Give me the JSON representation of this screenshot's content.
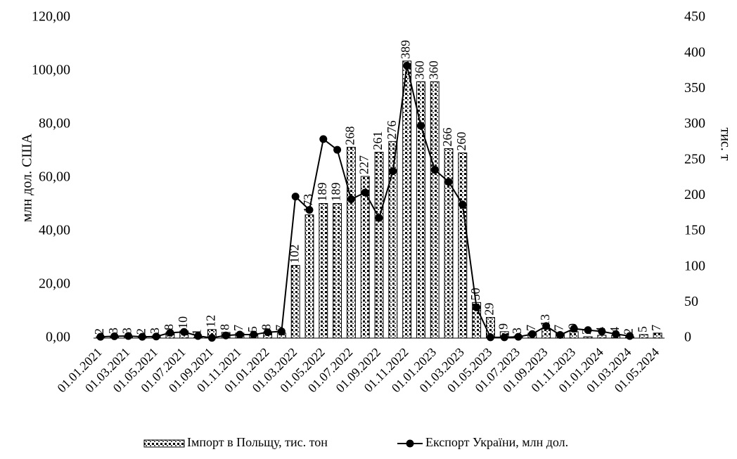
{
  "chart_data": {
    "type": "bar_line",
    "ylabel": "млн дол. США",
    "y2label": "тис. т",
    "categories": [
      "01.01.2021",
      null,
      "01.03.2021",
      null,
      "01.05.2021",
      null,
      "01.07.2021",
      null,
      "01.09.2021",
      null,
      "01.11.2021",
      null,
      "01.01.2022",
      null,
      "01.03.2022",
      null,
      "01.05.2022",
      null,
      "01.07.2022",
      null,
      "01.09.2022",
      null,
      "01.11.2022",
      null,
      "01.01.2023",
      null,
      "01.03.2023",
      null,
      "01.05.2023",
      null,
      "01.07.2023",
      null,
      "01.09.2023",
      null,
      "01.11.2023",
      null,
      "01.01.2024",
      null,
      "01.03.2024",
      null,
      "01.05.2024"
    ],
    "series": [
      {
        "name": "Імпорт в Польщу, тис. тон",
        "kind": "bar",
        "axis": "y2",
        "color": "#000000",
        "values": [
          2,
          3,
          3,
          2,
          3,
          8,
          10,
          1,
          12,
          8,
          7,
          5,
          8,
          7,
          102,
          173,
          189,
          189,
          268,
          227,
          261,
          276,
          389,
          360,
          360,
          266,
          260,
          50,
          29,
          9,
          3,
          7,
          13,
          7,
          9,
          2,
          4,
          4,
          2,
          5,
          7
        ]
      },
      {
        "name": "Експорт України, млн дол.",
        "kind": "line",
        "axis": "y",
        "color": "#000000",
        "values": [
          0.5,
          0.7,
          0.8,
          0.5,
          0.6,
          2.0,
          2.3,
          0.8,
          0.1,
          1.0,
          1.3,
          1.3,
          2.2,
          2.5,
          53,
          48,
          74.5,
          70.5,
          52,
          54.5,
          45,
          62.5,
          102,
          79.5,
          63,
          58.5,
          50,
          11.5,
          0.3,
          0.3,
          0.5,
          1.5,
          4.5,
          1.2,
          3.5,
          3.0,
          2.5,
          1.5,
          0.8,
          null,
          null
        ]
      }
    ],
    "ylim": [
      0,
      120
    ],
    "yticks": [
      {
        "value": 0,
        "label": "0,00"
      },
      {
        "value": 20,
        "label": "20,00"
      },
      {
        "value": 40,
        "label": "40,00"
      },
      {
        "value": 60,
        "label": "60,00"
      },
      {
        "value": 80,
        "label": "80,00"
      },
      {
        "value": 100,
        "label": "100,00"
      },
      {
        "value": 120,
        "label": "120,00"
      }
    ],
    "y2lim": [
      0,
      450
    ],
    "y2ticks": [
      0,
      50,
      100,
      150,
      200,
      250,
      300,
      350,
      400,
      450
    ],
    "legend": "bottom"
  }
}
